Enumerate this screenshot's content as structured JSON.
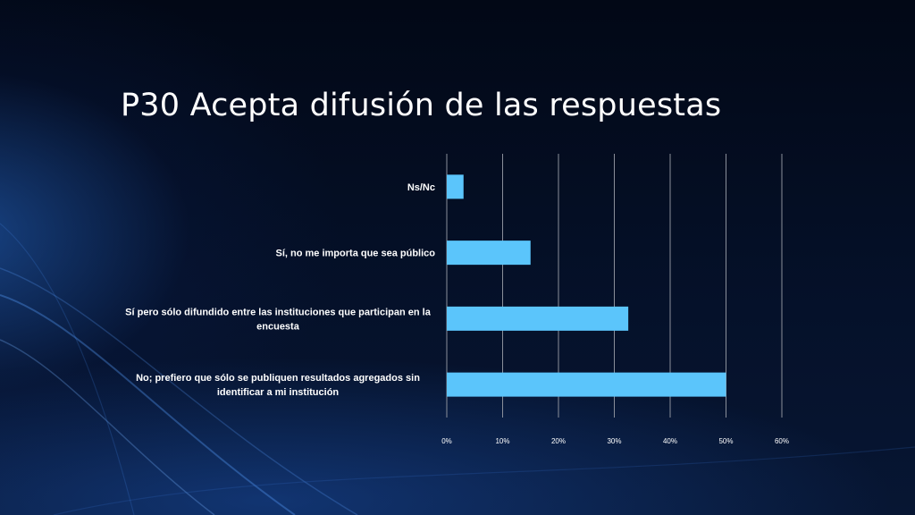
{
  "slide": {
    "title": "P30 Acepta difusión de las respuestas"
  },
  "colors": {
    "bar": "#5bc5fb",
    "gridline": "#8a8f9a",
    "text": "#ffffff",
    "background": "#030a1c"
  },
  "chart_data": {
    "type": "bar",
    "orientation": "horizontal",
    "categories": [
      [
        "Ns/Nc"
      ],
      [
        "Sí, no me importa que sea público"
      ],
      [
        "Sí pero sólo difundido entre las instituciones que participan en la",
        "encuesta"
      ],
      [
        "No; prefiero que sólo se publiquen resultados agregados sin",
        "identificar a mi institución"
      ]
    ],
    "values": [
      3,
      15,
      32.5,
      50
    ],
    "xlim": [
      0,
      60
    ],
    "xticks": [
      "0%",
      "10%",
      "20%",
      "30%",
      "40%",
      "50%",
      "60%"
    ],
    "grid": true,
    "legend": "none"
  }
}
